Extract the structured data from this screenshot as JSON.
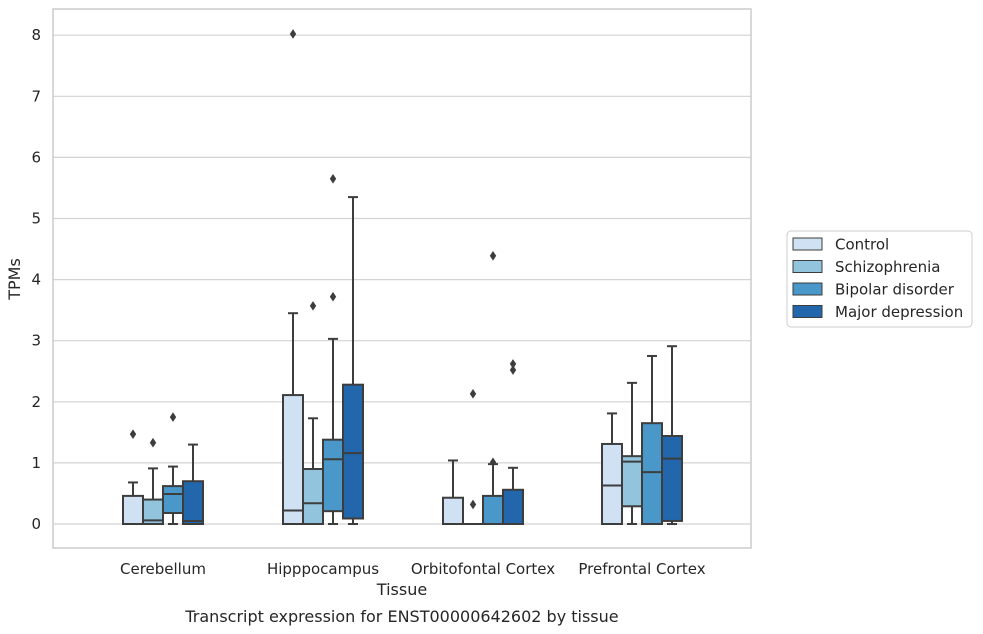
{
  "chart_data": {
    "type": "box",
    "title": "",
    "caption": "Transcript expression for ENST00000642602 by tissue",
    "xlabel": "Tissue",
    "ylabel": "TPMs",
    "ylim": [
      -0.4,
      8.4
    ],
    "yticks": [
      0,
      1,
      2,
      3,
      4,
      5,
      6,
      7,
      8
    ],
    "grid": "horizontal",
    "legend_position": "right",
    "categories": [
      "Cerebellum",
      "Hipppocampus",
      "Orbitofontal Cortex",
      "Prefrontal Cortex"
    ],
    "series": [
      {
        "name": "Control",
        "color": "#cfe1f2",
        "boxes": [
          {
            "whisker_low": 0,
            "q1": 0,
            "median": 0,
            "q3": 0.46,
            "whisker_high": 0.68,
            "outliers": [
              1.47
            ]
          },
          {
            "whisker_low": 0,
            "q1": 0,
            "median": 0.22,
            "q3": 2.11,
            "whisker_high": 3.45,
            "outliers": [
              8.02
            ]
          },
          {
            "whisker_low": 0,
            "q1": 0,
            "median": 0,
            "q3": 0.43,
            "whisker_high": 1.04,
            "outliers": []
          },
          {
            "whisker_low": 0,
            "q1": 0,
            "median": 0.63,
            "q3": 1.31,
            "whisker_high": 1.81,
            "outliers": []
          }
        ]
      },
      {
        "name": "Schizophrenia",
        "color": "#93c4de",
        "boxes": [
          {
            "whisker_low": 0,
            "q1": 0,
            "median": 0.06,
            "q3": 0.4,
            "whisker_high": 0.91,
            "outliers": [
              1.33
            ]
          },
          {
            "whisker_low": 0,
            "q1": 0,
            "median": 0.34,
            "q3": 0.9,
            "whisker_high": 1.73,
            "outliers": [
              3.57
            ]
          },
          {
            "whisker_low": 0,
            "q1": 0,
            "median": 0,
            "q3": 0,
            "whisker_high": 0,
            "outliers": [
              2.13,
              0.32
            ]
          },
          {
            "whisker_low": 0,
            "q1": 0.29,
            "median": 1.02,
            "q3": 1.11,
            "whisker_high": 2.31,
            "outliers": []
          }
        ]
      },
      {
        "name": "Bipolar disorder",
        "color": "#4a98c9",
        "boxes": [
          {
            "whisker_low": 0,
            "q1": 0.18,
            "median": 0.49,
            "q3": 0.62,
            "whisker_high": 0.94,
            "outliers": [
              1.75
            ]
          },
          {
            "whisker_low": 0,
            "q1": 0.21,
            "median": 1.06,
            "q3": 1.38,
            "whisker_high": 3.03,
            "outliers": [
              5.65,
              3.72
            ]
          },
          {
            "whisker_low": 0,
            "q1": 0,
            "median": 0,
            "q3": 0.46,
            "whisker_high": 0.98,
            "outliers": [
              4.39,
              1.01
            ]
          },
          {
            "whisker_low": 0,
            "q1": 0,
            "median": 0.85,
            "q3": 1.65,
            "whisker_high": 2.75,
            "outliers": []
          }
        ]
      },
      {
        "name": "Major depression",
        "color": "#2266ac",
        "boxes": [
          {
            "whisker_low": 0,
            "q1": 0,
            "median": 0.05,
            "q3": 0.7,
            "whisker_high": 1.3,
            "outliers": []
          },
          {
            "whisker_low": 0,
            "q1": 0.09,
            "median": 1.16,
            "q3": 2.28,
            "whisker_high": 5.35,
            "outliers": []
          },
          {
            "whisker_low": 0,
            "q1": 0,
            "median": 0,
            "q3": 0.56,
            "whisker_high": 0.92,
            "outliers": [
              2.62,
              2.52
            ]
          },
          {
            "whisker_low": 0,
            "q1": 0.05,
            "median": 1.07,
            "q3": 1.44,
            "whisker_high": 2.91,
            "outliers": []
          }
        ]
      }
    ]
  }
}
